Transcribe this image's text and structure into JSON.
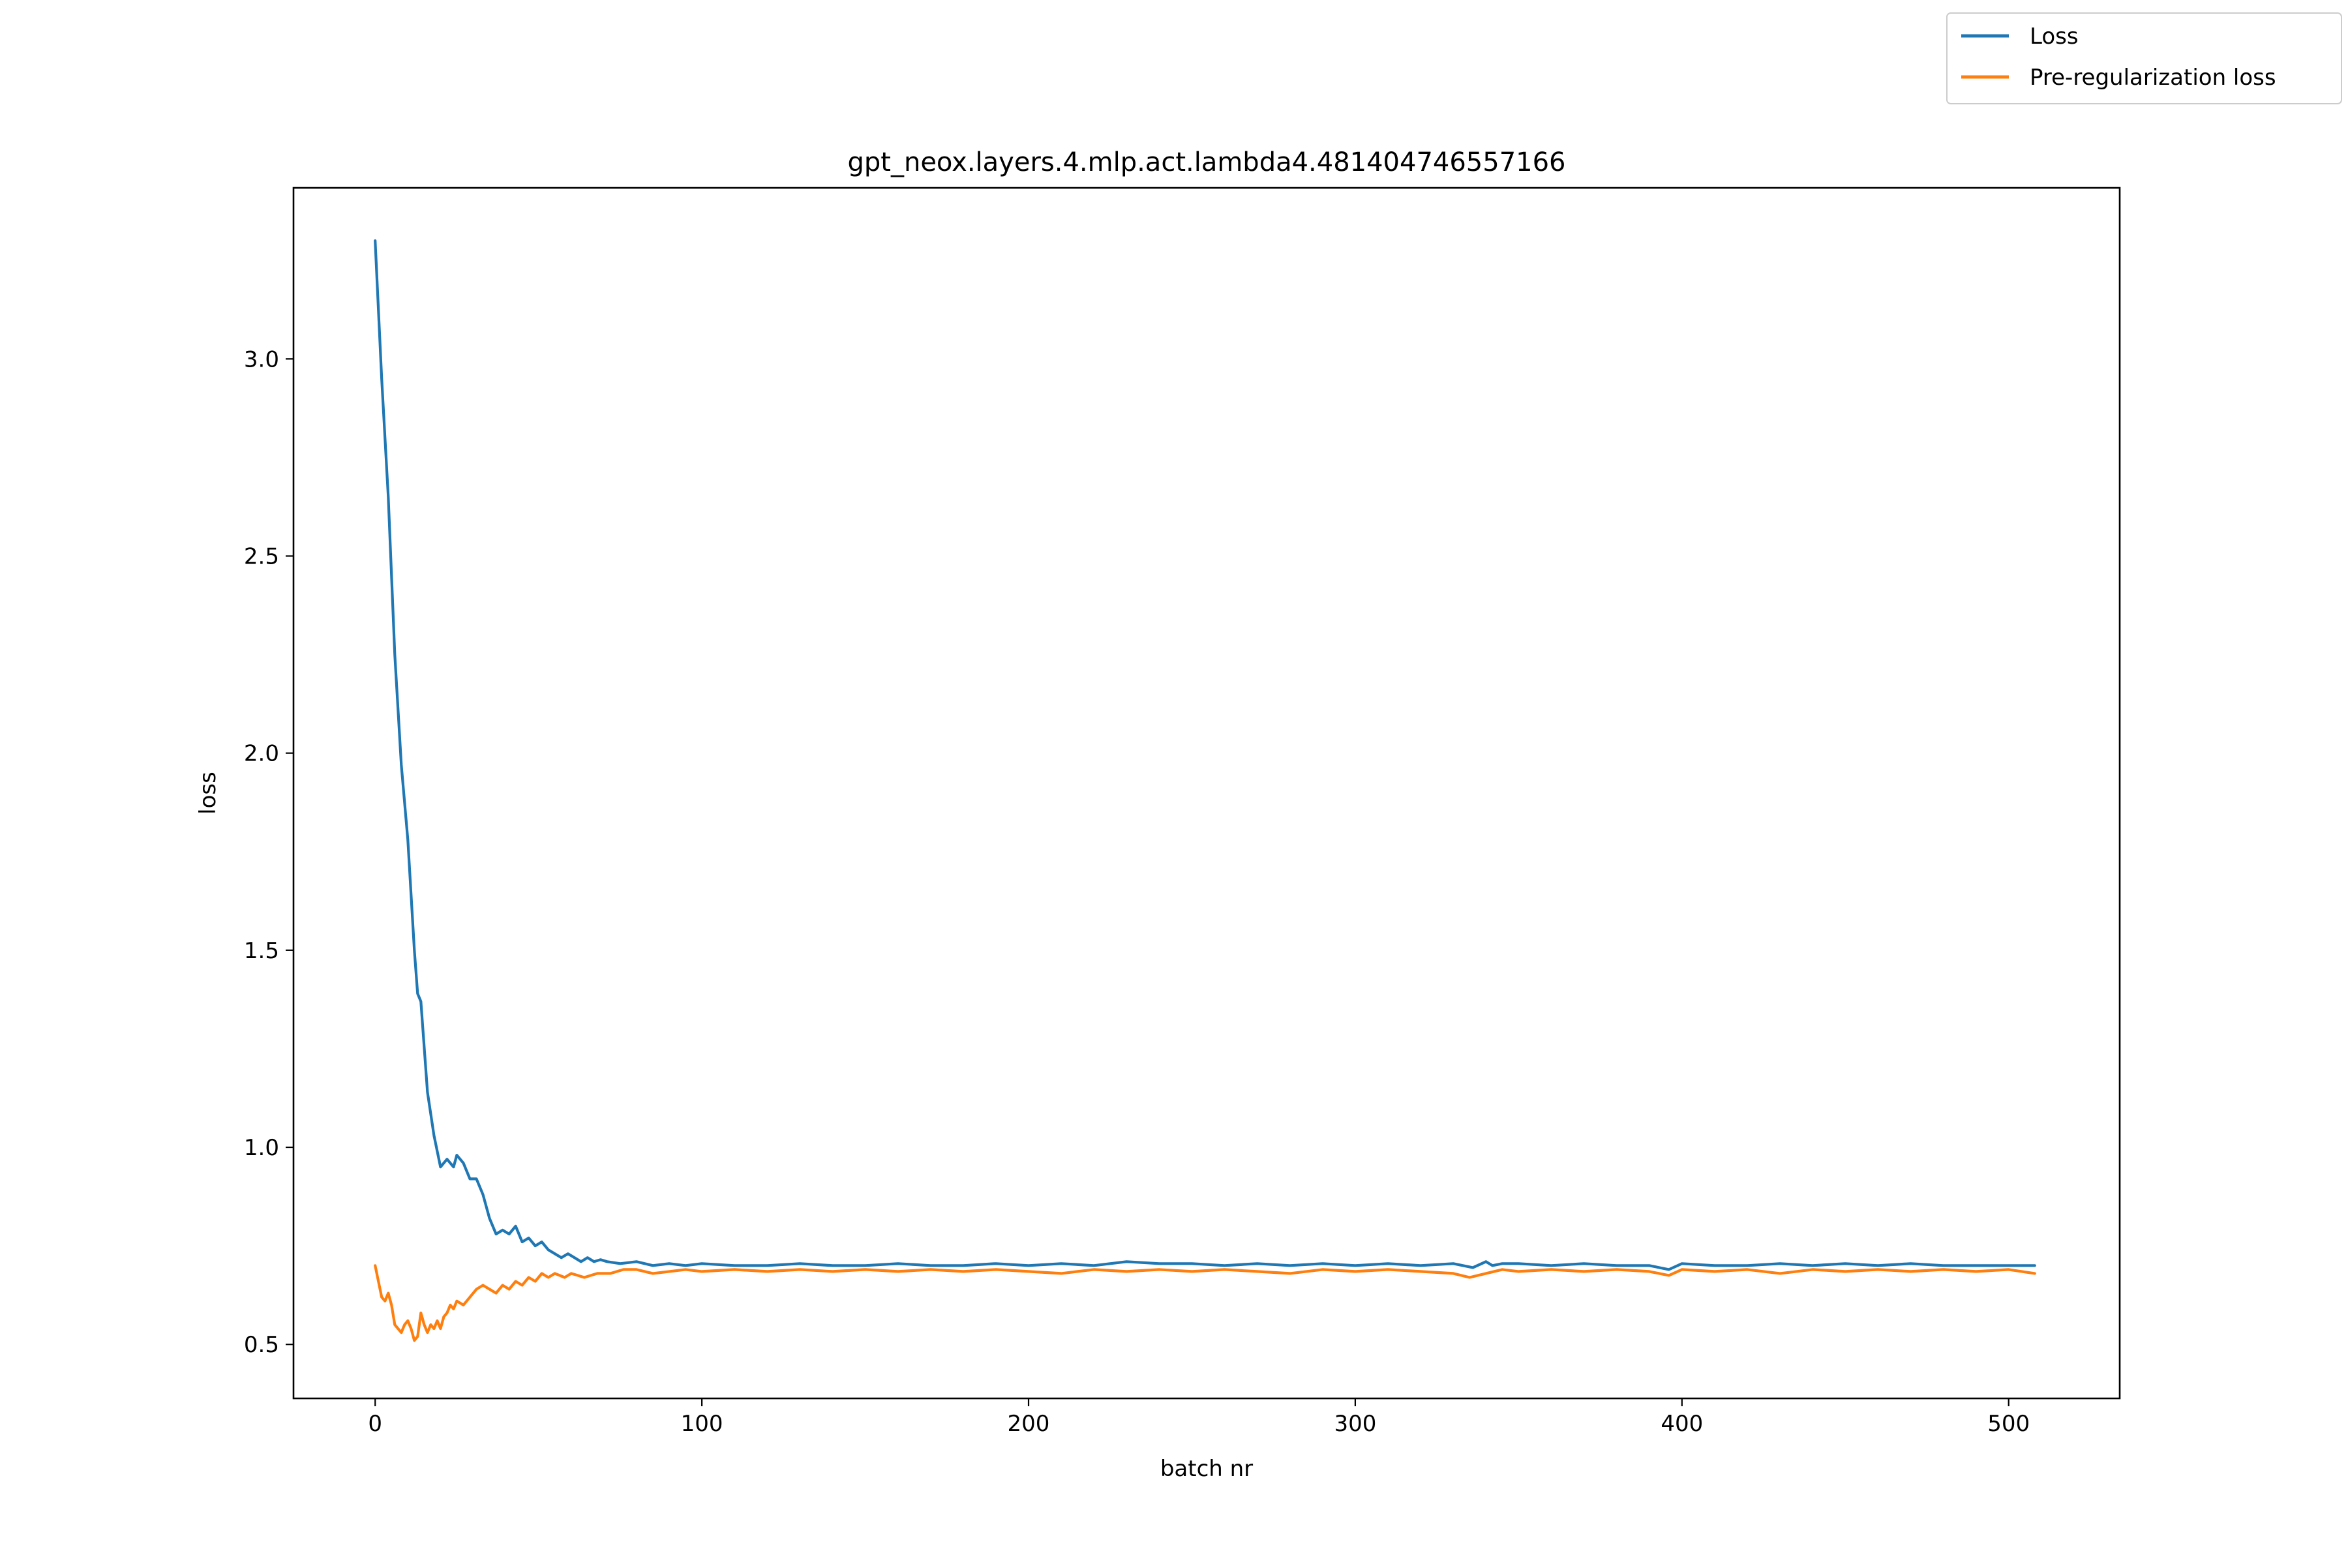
{
  "chart_data": {
    "type": "line",
    "title": "gpt_neox.layers.4.mlp.act.lambda4.481404746557166",
    "xlabel": "batch nr",
    "ylabel": "loss",
    "xlim": [
      -25,
      534
    ],
    "ylim": [
      0.363,
      3.434
    ],
    "xticks": [
      0,
      100,
      200,
      300,
      400,
      500
    ],
    "yticks": [
      0.5,
      1.0,
      1.5,
      2.0,
      2.5,
      3.0
    ],
    "xtick_labels": [
      "0",
      "100",
      "200",
      "300",
      "400",
      "500"
    ],
    "ytick_labels": [
      "0.5",
      "1.0",
      "1.5",
      "2.0",
      "2.5",
      "3.0"
    ],
    "grid": false,
    "legend": {
      "placement": "top-right (outside axes)"
    },
    "series": [
      {
        "name": "Loss",
        "color": "#1f77b4",
        "points": [
          [
            0,
            3.3
          ],
          [
            2,
            2.95
          ],
          [
            4,
            2.65
          ],
          [
            6,
            2.25
          ],
          [
            8,
            1.97
          ],
          [
            10,
            1.78
          ],
          [
            12,
            1.5
          ],
          [
            13,
            1.39
          ],
          [
            14,
            1.37
          ],
          [
            16,
            1.14
          ],
          [
            18,
            1.03
          ],
          [
            20,
            0.95
          ],
          [
            22,
            0.97
          ],
          [
            24,
            0.95
          ],
          [
            25,
            0.98
          ],
          [
            27,
            0.96
          ],
          [
            29,
            0.92
          ],
          [
            31,
            0.92
          ],
          [
            33,
            0.88
          ],
          [
            35,
            0.82
          ],
          [
            37,
            0.78
          ],
          [
            39,
            0.79
          ],
          [
            41,
            0.78
          ],
          [
            43,
            0.8
          ],
          [
            45,
            0.76
          ],
          [
            47,
            0.77
          ],
          [
            49,
            0.75
          ],
          [
            51,
            0.76
          ],
          [
            53,
            0.74
          ],
          [
            55,
            0.73
          ],
          [
            57,
            0.72
          ],
          [
            59,
            0.73
          ],
          [
            61,
            0.72
          ],
          [
            63,
            0.71
          ],
          [
            65,
            0.72
          ],
          [
            67,
            0.71
          ],
          [
            69,
            0.715
          ],
          [
            71,
            0.71
          ],
          [
            75,
            0.705
          ],
          [
            80,
            0.71
          ],
          [
            85,
            0.7
          ],
          [
            90,
            0.705
          ],
          [
            95,
            0.7
          ],
          [
            100,
            0.705
          ],
          [
            110,
            0.7
          ],
          [
            120,
            0.7
          ],
          [
            130,
            0.705
          ],
          [
            140,
            0.7
          ],
          [
            150,
            0.7
          ],
          [
            160,
            0.705
          ],
          [
            170,
            0.7
          ],
          [
            180,
            0.7
          ],
          [
            190,
            0.705
          ],
          [
            200,
            0.7
          ],
          [
            210,
            0.705
          ],
          [
            220,
            0.7
          ],
          [
            230,
            0.71
          ],
          [
            240,
            0.705
          ],
          [
            250,
            0.705
          ],
          [
            260,
            0.7
          ],
          [
            270,
            0.705
          ],
          [
            280,
            0.7
          ],
          [
            290,
            0.705
          ],
          [
            300,
            0.7
          ],
          [
            310,
            0.705
          ],
          [
            320,
            0.7
          ],
          [
            330,
            0.705
          ],
          [
            336,
            0.695
          ],
          [
            340,
            0.71
          ],
          [
            342,
            0.7
          ],
          [
            345,
            0.705
          ],
          [
            350,
            0.705
          ],
          [
            360,
            0.7
          ],
          [
            370,
            0.705
          ],
          [
            380,
            0.7
          ],
          [
            390,
            0.7
          ],
          [
            396,
            0.69
          ],
          [
            400,
            0.705
          ],
          [
            410,
            0.7
          ],
          [
            420,
            0.7
          ],
          [
            430,
            0.705
          ],
          [
            440,
            0.7
          ],
          [
            450,
            0.705
          ],
          [
            460,
            0.7
          ],
          [
            470,
            0.705
          ],
          [
            480,
            0.7
          ],
          [
            490,
            0.7
          ],
          [
            500,
            0.7
          ],
          [
            508,
            0.7
          ]
        ]
      },
      {
        "name": "Pre-regularization loss",
        "color": "#ff7f0e",
        "points": [
          [
            0,
            0.7
          ],
          [
            1,
            0.66
          ],
          [
            2,
            0.62
          ],
          [
            3,
            0.61
          ],
          [
            4,
            0.63
          ],
          [
            5,
            0.6
          ],
          [
            6,
            0.55
          ],
          [
            7,
            0.54
          ],
          [
            8,
            0.53
          ],
          [
            9,
            0.55
          ],
          [
            10,
            0.56
          ],
          [
            11,
            0.54
          ],
          [
            12,
            0.51
          ],
          [
            13,
            0.52
          ],
          [
            14,
            0.58
          ],
          [
            15,
            0.55
          ],
          [
            16,
            0.53
          ],
          [
            17,
            0.55
          ],
          [
            18,
            0.54
          ],
          [
            19,
            0.56
          ],
          [
            20,
            0.54
          ],
          [
            21,
            0.57
          ],
          [
            22,
            0.58
          ],
          [
            23,
            0.6
          ],
          [
            24,
            0.59
          ],
          [
            25,
            0.61
          ],
          [
            27,
            0.6
          ],
          [
            29,
            0.62
          ],
          [
            31,
            0.64
          ],
          [
            33,
            0.65
          ],
          [
            35,
            0.64
          ],
          [
            37,
            0.63
          ],
          [
            39,
            0.65
          ],
          [
            41,
            0.64
          ],
          [
            43,
            0.66
          ],
          [
            45,
            0.65
          ],
          [
            47,
            0.67
          ],
          [
            49,
            0.66
          ],
          [
            51,
            0.68
          ],
          [
            53,
            0.67
          ],
          [
            55,
            0.68
          ],
          [
            58,
            0.67
          ],
          [
            60,
            0.68
          ],
          [
            64,
            0.67
          ],
          [
            68,
            0.68
          ],
          [
            72,
            0.68
          ],
          [
            76,
            0.69
          ],
          [
            80,
            0.69
          ],
          [
            85,
            0.68
          ],
          [
            90,
            0.685
          ],
          [
            95,
            0.69
          ],
          [
            100,
            0.685
          ],
          [
            110,
            0.69
          ],
          [
            120,
            0.685
          ],
          [
            130,
            0.69
          ],
          [
            140,
            0.685
          ],
          [
            150,
            0.69
          ],
          [
            160,
            0.685
          ],
          [
            170,
            0.69
          ],
          [
            180,
            0.685
          ],
          [
            190,
            0.69
          ],
          [
            200,
            0.685
          ],
          [
            210,
            0.68
          ],
          [
            220,
            0.69
          ],
          [
            230,
            0.685
          ],
          [
            240,
            0.69
          ],
          [
            250,
            0.685
          ],
          [
            260,
            0.69
          ],
          [
            270,
            0.685
          ],
          [
            280,
            0.68
          ],
          [
            290,
            0.69
          ],
          [
            300,
            0.685
          ],
          [
            310,
            0.69
          ],
          [
            320,
            0.685
          ],
          [
            330,
            0.68
          ],
          [
            335,
            0.67
          ],
          [
            340,
            0.68
          ],
          [
            345,
            0.69
          ],
          [
            350,
            0.685
          ],
          [
            360,
            0.69
          ],
          [
            370,
            0.685
          ],
          [
            380,
            0.69
          ],
          [
            390,
            0.685
          ],
          [
            396,
            0.675
          ],
          [
            400,
            0.69
          ],
          [
            410,
            0.685
          ],
          [
            420,
            0.69
          ],
          [
            430,
            0.68
          ],
          [
            440,
            0.69
          ],
          [
            450,
            0.685
          ],
          [
            460,
            0.69
          ],
          [
            470,
            0.685
          ],
          [
            480,
            0.69
          ],
          [
            490,
            0.685
          ],
          [
            500,
            0.69
          ],
          [
            508,
            0.68
          ]
        ]
      }
    ]
  }
}
